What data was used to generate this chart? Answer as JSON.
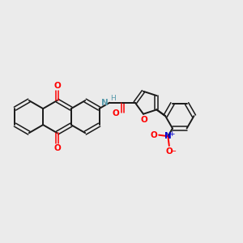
{
  "bg_color": "#ebebeb",
  "bond_color": "#1a1a1a",
  "oxygen_color": "#ff0000",
  "nitrogen_color": "#0000cc",
  "nh_color": "#5599aa",
  "figsize": [
    3.0,
    3.0
  ],
  "dpi": 100,
  "xlim": [
    0,
    10
  ],
  "ylim": [
    0,
    10
  ]
}
